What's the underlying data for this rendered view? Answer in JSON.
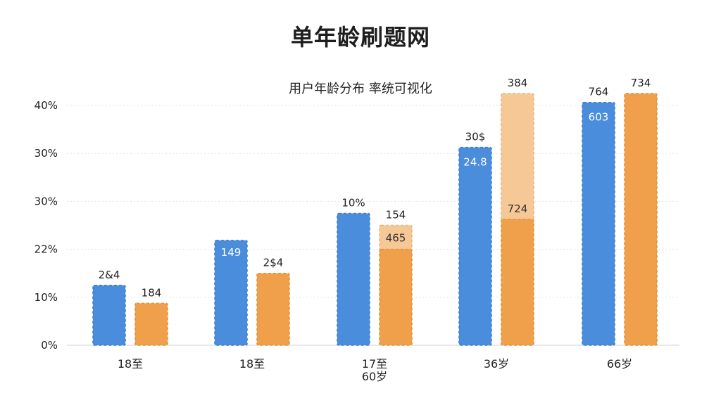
{
  "title": "单年龄刷题网",
  "subtitle": "用户年龄分布 率统可视化",
  "chart_data": {
    "type": "bar",
    "title": "单年龄刷题网",
    "subtitle": "用户年龄分布 率统可视化",
    "y_tick_labels": [
      "0%",
      "10%",
      "22%",
      "30%",
      "30%",
      "40%"
    ],
    "ylim": [
      0,
      40
    ],
    "grid": true,
    "categories": [
      "18至",
      "18至",
      "17至\n60岁",
      "36岁",
      "66岁"
    ],
    "series": [
      {
        "color": "#4a8ddc",
        "values": [
          10,
          17.5,
          22,
          33,
          40.5
        ],
        "labels": [
          "2&4",
          "149",
          "10%",
          "30$",
          "764"
        ],
        "inner_labels": [
          "",
          "",
          "",
          "24.8",
          "603"
        ]
      },
      {
        "color": "#f0a04b",
        "values": [
          7,
          12,
          16,
          21,
          42
        ],
        "labels": [
          "184",
          "2$4",
          "154",
          "384",
          "734"
        ],
        "inner_labels": [
          "",
          "",
          "",
          "",
          ""
        ],
        "upper_values": [
          null,
          null,
          20,
          42,
          null
        ],
        "upper_color": "#f6c896",
        "upper_labels": [
          "",
          "",
          "465",
          "724",
          ""
        ]
      }
    ],
    "colors": {
      "blue": "#4a8ddc",
      "orange": "#f0a04b",
      "light_orange": "#f6c896",
      "grid": "#e4e4e4"
    }
  }
}
